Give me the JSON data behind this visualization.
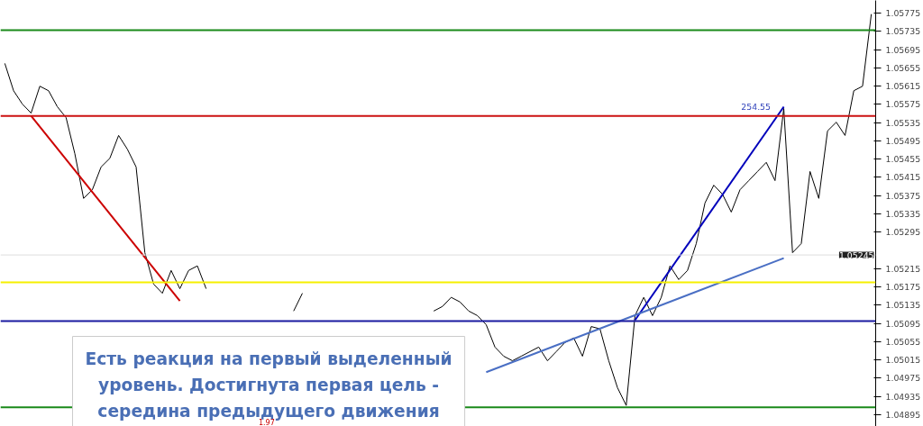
{
  "chart_data": {
    "type": "line",
    "categories": [
      null,
      null,
      null,
      null,
      null,
      null,
      null,
      null,
      null,
      null,
      null,
      null,
      null,
      null,
      null,
      null,
      null,
      null,
      null,
      null,
      null,
      null,
      null,
      null,
      null,
      null,
      null,
      null,
      null,
      null,
      null,
      null,
      null,
      null,
      null,
      null,
      null,
      null,
      null,
      null,
      null,
      null,
      null,
      null,
      null,
      null,
      null,
      null,
      null,
      null,
      null,
      null,
      null,
      null,
      null,
      null,
      null,
      null,
      null,
      null,
      null,
      null,
      null,
      null,
      null,
      null,
      null,
      null,
      null,
      null,
      null,
      null,
      null,
      null,
      null,
      null,
      null,
      null,
      null,
      null,
      null,
      null,
      null,
      null,
      null,
      null,
      null,
      null,
      null,
      null,
      null,
      null,
      null,
      null,
      null,
      null,
      null,
      null,
      null,
      null
    ],
    "series": [
      {
        "color": "#000000",
        "values": [
          1.05665,
          1.05605,
          1.05576,
          1.05556,
          1.05615,
          1.05605,
          1.0557,
          1.05546,
          1.05467,
          1.05369,
          1.05388,
          1.05438,
          1.05457,
          1.05507,
          1.05477,
          1.05438,
          1.0525,
          1.05181,
          1.05161,
          1.05211,
          1.05171,
          1.05211,
          1.05221,
          1.05171,
          null,
          null,
          null,
          null,
          null,
          null,
          null,
          null,
          null,
          null,
          null,
          null,
          null,
          null,
          null,
          null,
          null,
          null,
          null,
          null,
          null,
          null,
          null,
          null,
          null,
          null,
          null,
          null,
          null,
          null,
          null,
          null,
          null,
          null,
          null,
          null,
          null,
          null,
          null,
          null,
          null,
          null,
          null,
          null,
          null,
          null,
          null,
          null,
          null,
          null,
          null,
          null,
          null,
          null,
          null,
          null,
          null,
          null,
          null,
          null,
          null,
          null,
          null,
          null,
          null,
          null,
          null,
          null,
          null,
          null,
          null,
          null,
          null,
          null,
          null,
          null
        ]
      },
      {
        "color": "#000000",
        "values": [
          null,
          null,
          null,
          null,
          null,
          null,
          null,
          null,
          null,
          null,
          null,
          null,
          null,
          null,
          null,
          null,
          null,
          null,
          null,
          null,
          null,
          null,
          null,
          null,
          null,
          null,
          null,
          null,
          null,
          null,
          null,
          null,
          null,
          1.05122,
          1.05161,
          null,
          null,
          null,
          null,
          null,
          null,
          null,
          null,
          null,
          null,
          null,
          null,
          null,
          null,
          null,
          null,
          null,
          null,
          null,
          null,
          null,
          null,
          null,
          null,
          null,
          null,
          null,
          null,
          null,
          null,
          null,
          null,
          null,
          null,
          null,
          null,
          null,
          null,
          null,
          null,
          null,
          null,
          null,
          null,
          null,
          null,
          null,
          null,
          null,
          null,
          null,
          null,
          null,
          null,
          null,
          null,
          null,
          null,
          null,
          null,
          null,
          null,
          null,
          null,
          null
        ]
      },
      {
        "color": "#000000",
        "values": [
          null,
          null,
          null,
          null,
          null,
          null,
          null,
          null,
          null,
          null,
          null,
          null,
          null,
          null,
          null,
          null,
          null,
          null,
          null,
          null,
          null,
          null,
          null,
          null,
          null,
          null,
          null,
          null,
          null,
          null,
          null,
          null,
          null,
          null,
          null,
          null,
          null,
          null,
          null,
          null,
          null,
          null,
          null,
          null,
          null,
          null,
          null,
          null,
          null,
          1.05122,
          1.05132,
          1.05152,
          1.05142,
          1.05122,
          1.05112,
          1.05092,
          1.05043,
          1.05023,
          1.05013,
          1.05023,
          1.05033,
          1.05043,
          1.05013,
          1.05033,
          1.05053,
          1.05063,
          1.05023,
          1.05088,
          1.05083,
          1.05013,
          1.04954,
          1.04915,
          1.05112,
          1.05152,
          1.05112,
          1.05152,
          1.05221,
          1.05191,
          1.05211,
          1.0527,
          1.05359,
          1.05398,
          1.05378,
          1.05339,
          1.05388,
          1.05408,
          1.05428,
          1.05448,
          1.05408,
          1.05566,
          1.0525,
          1.0527,
          1.05428,
          1.05369,
          1.05517,
          1.05536,
          1.05507,
          1.05605,
          1.05615,
          1.05773
        ]
      },
      {
        "color": "#cc0000",
        "values": [
          null,
          null,
          null,
          1.0555,
          null,
          null,
          null,
          null,
          null,
          null,
          null,
          null,
          null,
          null,
          null,
          null,
          null,
          null,
          null,
          null,
          1.05144,
          null,
          null,
          null,
          null,
          null,
          null,
          null,
          null,
          null,
          null,
          null,
          null,
          null,
          null,
          null,
          null,
          null,
          null,
          null,
          null,
          null,
          null,
          null,
          null,
          null,
          null,
          null,
          null,
          null,
          null,
          null,
          null,
          null,
          null,
          null,
          null,
          null,
          null,
          null,
          null,
          null,
          null,
          null,
          null,
          null,
          null,
          null,
          null,
          null,
          null,
          null,
          null,
          null,
          null,
          null,
          null,
          null,
          null,
          null,
          null,
          null,
          null,
          null,
          null,
          null,
          null,
          null,
          null,
          null,
          null,
          null,
          null,
          null,
          null,
          null,
          null,
          null,
          null,
          null
        ]
      },
      {
        "color": "#0000bb",
        "values": [
          null,
          null,
          null,
          null,
          null,
          null,
          null,
          null,
          null,
          null,
          null,
          null,
          null,
          null,
          null,
          null,
          null,
          null,
          null,
          null,
          null,
          null,
          null,
          null,
          null,
          null,
          null,
          null,
          null,
          null,
          null,
          null,
          null,
          null,
          null,
          null,
          null,
          null,
          null,
          null,
          null,
          null,
          null,
          null,
          null,
          null,
          null,
          null,
          null,
          null,
          null,
          null,
          null,
          null,
          null,
          null,
          null,
          null,
          null,
          null,
          null,
          null,
          null,
          null,
          null,
          null,
          null,
          null,
          null,
          null,
          null,
          null,
          1.05102,
          null,
          null,
          null,
          null,
          null,
          null,
          null,
          null,
          null,
          null,
          null,
          null,
          null,
          null,
          null,
          null,
          1.0557,
          null,
          null,
          null,
          null,
          null,
          null,
          null,
          null,
          null,
          null
        ]
      },
      {
        "color": "#4a6fc4",
        "values": [
          null,
          null,
          null,
          null,
          null,
          null,
          null,
          null,
          null,
          null,
          null,
          null,
          null,
          null,
          null,
          null,
          null,
          null,
          null,
          null,
          null,
          null,
          null,
          null,
          null,
          null,
          null,
          null,
          null,
          null,
          null,
          null,
          null,
          null,
          null,
          null,
          null,
          null,
          null,
          null,
          null,
          null,
          null,
          null,
          null,
          null,
          null,
          null,
          null,
          null,
          null,
          null,
          null,
          null,
          null,
          1.04988,
          null,
          null,
          null,
          null,
          null,
          null,
          null,
          null,
          null,
          null,
          null,
          null,
          null,
          null,
          null,
          null,
          null,
          null,
          null,
          null,
          null,
          null,
          null,
          null,
          null,
          null,
          null,
          null,
          null,
          null,
          null,
          null,
          null,
          1.05238,
          null,
          null,
          null,
          null,
          null,
          null,
          null,
          null,
          null,
          null
        ]
      }
    ],
    "ylim": [
      1.04869,
      1.05803
    ],
    "yticks": [
      1.05775,
      1.05735,
      1.05695,
      1.05655,
      1.05615,
      1.05575,
      1.05535,
      1.05495,
      1.05455,
      1.05415,
      1.05375,
      1.05335,
      1.05295,
      1.05215,
      1.05175,
      1.05135,
      1.05095,
      1.05055,
      1.05015,
      1.04975,
      1.04935,
      1.04895
    ],
    "tick_labels": "y",
    "ref_lines": [
      {
        "axis": "y",
        "value": 1.05738,
        "color": "#1a8a1a"
      },
      {
        "axis": "y",
        "value": 1.0555,
        "color": "#cc1111"
      },
      {
        "axis": "y",
        "value": 1.05185,
        "color": "#f5f000"
      },
      {
        "axis": "y",
        "value": 1.051,
        "color": "#1a1aa0"
      },
      {
        "axis": "y",
        "value": 1.04911,
        "color": "#1a8a1a"
      },
      {
        "axis": "y",
        "value": 1.05245,
        "color": "#dddddd",
        "label": "1.05245"
      }
    ],
    "annotations": [
      "254.55",
      "Есть реакция на первый выделенный уровень. Достигнута первая цель - середина предыдущего движения",
      "1.97"
    ],
    "legend": false,
    "grid": false
  }
}
